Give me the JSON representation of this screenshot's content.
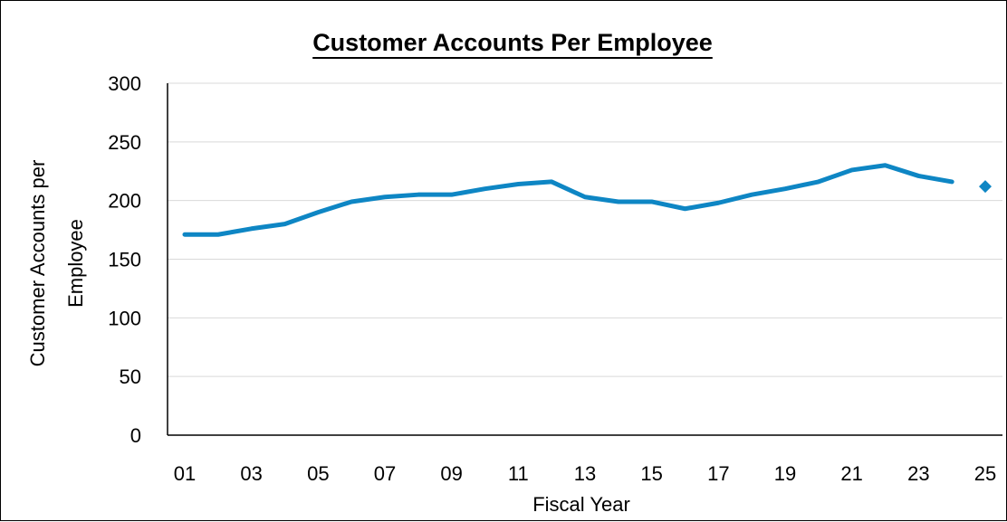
{
  "chart_data": {
    "type": "line",
    "title": "Customer Accounts Per Employee",
    "xlabel": "Fiscal Year",
    "ylabel_lines": [
      "Customer Accounts per",
      "Employee"
    ],
    "ylim": [
      0,
      300
    ],
    "yticks": [
      "0",
      "50",
      "100",
      "150",
      "200",
      "250",
      "300"
    ],
    "xticks": [
      "01",
      "03",
      "05",
      "07",
      "09",
      "11",
      "13",
      "15",
      "17",
      "19",
      "21",
      "23",
      "25"
    ],
    "grid": true,
    "series": [
      {
        "color": "#0E86C4",
        "x": [
          "01",
          "02",
          "03",
          "04",
          "05",
          "06",
          "07",
          "08",
          "09",
          "10",
          "11",
          "12",
          "13",
          "14",
          "15",
          "16",
          "17",
          "18",
          "19",
          "20",
          "21",
          "22",
          "23",
          "24"
        ],
        "values": [
          171,
          171,
          176,
          180,
          190,
          199,
          203,
          205,
          205,
          210,
          214,
          216,
          203,
          199,
          199,
          193,
          198,
          205,
          210,
          216,
          226,
          230,
          221,
          216
        ]
      },
      {
        "marker": "diamond",
        "color": "#0E86C4",
        "x": [
          "25"
        ],
        "values": [
          212
        ]
      }
    ]
  }
}
